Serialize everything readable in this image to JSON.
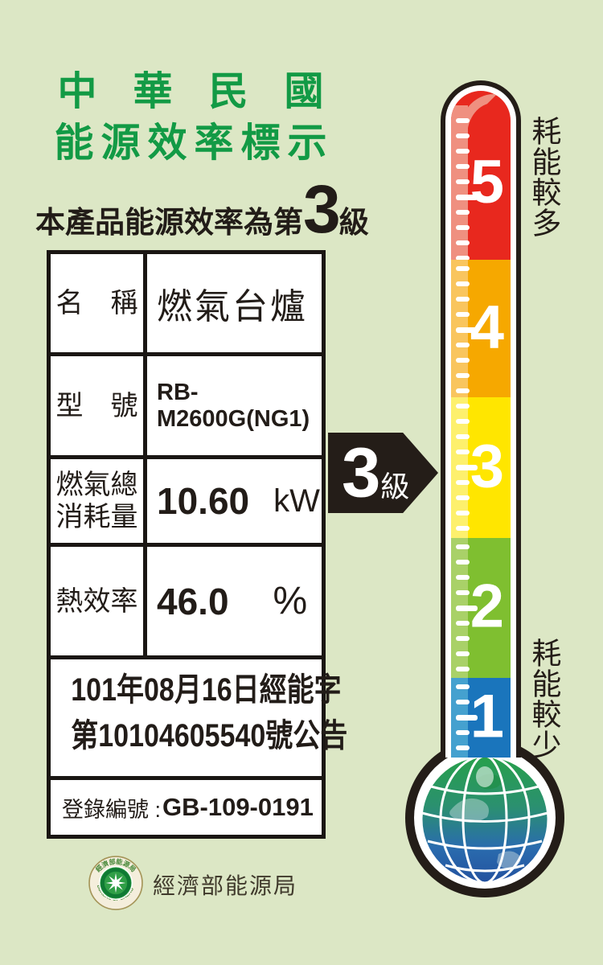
{
  "header": {
    "title_line1": "中華民國",
    "title_line2": "能源效率標示",
    "statement_prefix": "本產品能源效率為第",
    "statement_grade": "3",
    "statement_suffix": "級"
  },
  "table": {
    "rows": [
      {
        "label": "名　稱",
        "value": "燃氣台爐"
      },
      {
        "label": "型　號",
        "value": "RB-M2600G(NG1)"
      },
      {
        "label_line1": "燃氣總",
        "label_line2": "消耗量",
        "value": "10.60",
        "unit": "kW"
      },
      {
        "label": "熱效率",
        "value": "46.0",
        "unit": "%"
      }
    ],
    "announcement_line1": "101年08月16日經能字",
    "announcement_line2": "第10104605540號公告",
    "registration_label": "登錄編號 :",
    "registration_value": "GB-109-0191"
  },
  "grade_arrow": {
    "number": "3",
    "suffix": "級"
  },
  "thermometer": {
    "top_label": "耗能較多",
    "bottom_label": "耗能較少",
    "grades": [
      {
        "number": "5",
        "color": "#e8281e",
        "light": "#ef9080"
      },
      {
        "number": "4",
        "color": "#f6a800",
        "light": "#f9c55e"
      },
      {
        "number": "3",
        "color": "#ffe600",
        "light": "#fdf06d"
      },
      {
        "number": "2",
        "color": "#7fbf30",
        "light": "#a9d168"
      },
      {
        "number": "1",
        "color": "#1a75bc",
        "light": "#45a1cf"
      }
    ]
  },
  "footer": {
    "agency_name": "經濟部能源局",
    "seal_top_text": "經濟部能源局",
    "seal_bottom_text": "BUREAU OF ENERGY"
  }
}
